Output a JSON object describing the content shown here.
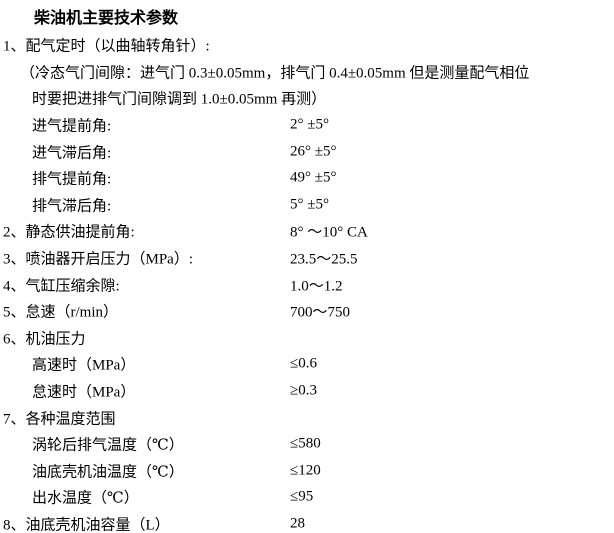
{
  "page": {
    "background": "#ffffff",
    "text_color": "#000000"
  },
  "title": "柴油机主要技术参数",
  "lines": [
    {
      "name": "item-valve-timing",
      "indent": 0,
      "label": "1、配气定时（以曲轴转角针）:",
      "value": ""
    },
    {
      "name": "note-cold-valve-clearance",
      "indent": 1,
      "label": "（冷态气门间隙：进气门 0.3±0.05mm，排气门 0.4±0.05mm 但是测量配气相位",
      "value": ""
    },
    {
      "name": "note-cold-valve-clearance-cont",
      "indent": 2,
      "label": "时要把进排气门间隙调到 1.0±0.05mm 再测）",
      "value": ""
    },
    {
      "name": "row-intake-advance-angle",
      "indent": 2,
      "label": "进气提前角:",
      "value": "2° ±5°"
    },
    {
      "name": "row-intake-lag-angle",
      "indent": 2,
      "label": "进气滞后角:",
      "value": "26° ±5°"
    },
    {
      "name": "row-exhaust-advance-angle",
      "indent": 2,
      "label": "排气提前角:",
      "value": "49° ±5°"
    },
    {
      "name": "row-exhaust-lag-angle",
      "indent": 2,
      "label": "排气滞后角:",
      "value": "5° ±5°"
    },
    {
      "name": "item-static-fuel-advance-angle",
      "indent": 0,
      "label": "2、静态供油提前角:",
      "value": "8° ～10° CA"
    },
    {
      "name": "item-injector-opening-pressure",
      "indent": 0,
      "label": "3、喷油器开启压力（MPa）:",
      "value": "23.5～25.5"
    },
    {
      "name": "item-cylinder-compression-clearance",
      "indent": 0,
      "label": "4、气缸压缩余隙:",
      "value": "1.0～1.2"
    },
    {
      "name": "item-idle-speed",
      "indent": 0,
      "label": "5、怠速（r/min）",
      "value": "700～750"
    },
    {
      "name": "item-oil-pressure",
      "indent": 0,
      "label": "6、机油压力",
      "value": ""
    },
    {
      "name": "row-oil-pressure-high-speed",
      "indent": 2,
      "label": "高速时（MPa）",
      "value": "≤0.6"
    },
    {
      "name": "row-oil-pressure-idle",
      "indent": 2,
      "label": "怠速时（MPa）",
      "value": "≥0.3"
    },
    {
      "name": "item-temperature-ranges",
      "indent": 0,
      "label": "7、各种温度范围",
      "value": ""
    },
    {
      "name": "row-exhaust-temp-after-turbo",
      "indent": 2,
      "label": "涡轮后排气温度（℃）",
      "value": "≤580"
    },
    {
      "name": "row-oil-sump-oil-temp",
      "indent": 2,
      "label": "油底壳机油温度（℃）",
      "value": "≤120"
    },
    {
      "name": "row-outlet-water-temp",
      "indent": 2,
      "label": "出水温度（℃）",
      "value": "≤95"
    },
    {
      "name": "item-oil-sump-capacity",
      "indent": 0,
      "label": "8、油底壳机油容量（L）",
      "value": "28"
    }
  ]
}
